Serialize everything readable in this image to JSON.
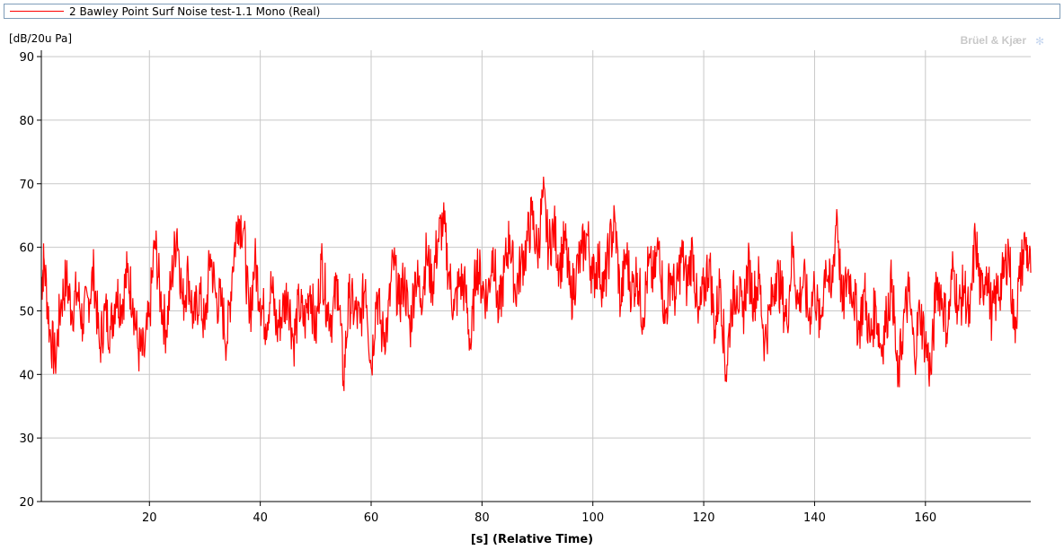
{
  "legend": {
    "label": "2 Bawley Point Surf Noise test-1.1 Mono (Real)"
  },
  "brand": {
    "text": "Brüel & Kjær",
    "icon": "bk-logo-icon"
  },
  "chart_data": {
    "type": "line",
    "xlabel": "[s] (Relative Time)",
    "ylabel": "[dB/20u Pa]",
    "xlim": [
      0.5,
      179
    ],
    "ylim": [
      20,
      91
    ],
    "xticks": [
      20,
      40,
      60,
      80,
      100,
      120,
      140,
      160
    ],
    "yticks": [
      20,
      30,
      40,
      50,
      60,
      70,
      80,
      90
    ],
    "grid": true,
    "legend_position": "top",
    "series": [
      {
        "name": "2 Bawley Point Surf Noise test-1.1 Mono (Real)",
        "color": "#ff0000",
        "x": [
          0.5,
          1,
          2,
          3,
          4,
          5,
          6,
          7,
          8,
          9,
          10,
          11,
          12,
          13,
          14,
          15,
          16,
          17,
          18,
          19,
          20,
          21,
          22,
          23,
          24,
          25,
          26,
          27,
          28,
          29,
          30,
          31,
          32,
          33,
          34,
          35,
          36,
          37,
          38,
          39,
          40,
          41,
          42,
          43,
          44,
          45,
          46,
          47,
          48,
          49,
          50,
          51,
          52,
          53,
          54,
          55,
          56,
          57,
          58,
          59,
          60,
          61,
          62,
          63,
          64,
          65,
          66,
          67,
          68,
          69,
          70,
          71,
          72,
          73,
          74,
          75,
          76,
          77,
          78,
          79,
          80,
          81,
          82,
          83,
          84,
          85,
          86,
          87,
          88,
          89,
          90,
          91,
          92,
          93,
          94,
          95,
          96,
          97,
          98,
          99,
          100,
          101,
          102,
          103,
          104,
          105,
          106,
          107,
          108,
          109,
          110,
          111,
          112,
          113,
          114,
          115,
          116,
          117,
          118,
          119,
          120,
          121,
          122,
          123,
          124,
          125,
          126,
          127,
          128,
          129,
          130,
          131,
          132,
          133,
          134,
          135,
          136,
          137,
          138,
          139,
          140,
          141,
          142,
          143,
          144,
          145,
          146,
          147,
          148,
          149,
          150,
          151,
          152,
          153,
          154,
          155,
          156,
          157,
          158,
          159,
          160,
          161,
          162,
          163,
          164,
          165,
          166,
          167,
          168,
          169,
          170,
          171,
          172,
          173,
          174,
          175,
          176,
          177,
          178,
          179
        ],
        "y": [
          54,
          58,
          47,
          42,
          51,
          55,
          50,
          53,
          48,
          52,
          56,
          44,
          50,
          47,
          53,
          51,
          56,
          52,
          44,
          43,
          49,
          61,
          52,
          47,
          55,
          63,
          51,
          56,
          48,
          53,
          47,
          59,
          52,
          51,
          45,
          57,
          65,
          63,
          48,
          58,
          52,
          48,
          54,
          47,
          50,
          53,
          45,
          51,
          48,
          54,
          46,
          58,
          51,
          49,
          55,
          39,
          52,
          50,
          48,
          55,
          41,
          53,
          46,
          48,
          58,
          51,
          55,
          47,
          56,
          52,
          59,
          54,
          61,
          64,
          56,
          50,
          55,
          53,
          44,
          58,
          54,
          52,
          60,
          49,
          56,
          62,
          53,
          57,
          60,
          65,
          59,
          68,
          60,
          63,
          57,
          61,
          52,
          56,
          59,
          62,
          55,
          58,
          53,
          60,
          64,
          51,
          59,
          53,
          56,
          49,
          57,
          55,
          61,
          48,
          56,
          52,
          59,
          54,
          60,
          48,
          53,
          58,
          47,
          55,
          40,
          51,
          54,
          49,
          57,
          52,
          55,
          45,
          50,
          56,
          53,
          48,
          60,
          51,
          55,
          49,
          54,
          47,
          58,
          52,
          66,
          50,
          56,
          53,
          47,
          53,
          45,
          51,
          44,
          49,
          55,
          38,
          48,
          53,
          43,
          50,
          45,
          40,
          55,
          52,
          47,
          57,
          50,
          54,
          48,
          62,
          52,
          57,
          49,
          53,
          55,
          60,
          47,
          55,
          61,
          56
        ]
      }
    ]
  }
}
